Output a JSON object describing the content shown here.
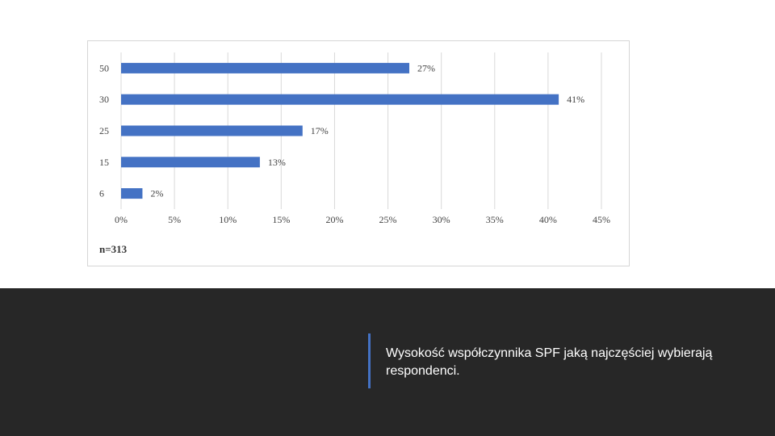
{
  "chart_data": {
    "type": "bar",
    "orientation": "horizontal",
    "categories": [
      "50",
      "30",
      "25",
      "15",
      "6"
    ],
    "values": [
      27,
      41,
      17,
      13,
      2
    ],
    "value_labels": [
      "27%",
      "41%",
      "17%",
      "13%",
      "2%"
    ],
    "x_ticks": [
      "0%",
      "5%",
      "10%",
      "15%",
      "20%",
      "25%",
      "30%",
      "35%",
      "40%",
      "45%"
    ],
    "xlim": [
      0,
      45
    ],
    "grid": "vertical",
    "bar_color": "#4472c4"
  },
  "sample_note": "n=313",
  "caption": "Wysokość współczynnika SPF  jaką najczęściej wybierają respondenci.",
  "colors": {
    "background_band": "#272727",
    "accent": "#4472c4",
    "caption_text": "#ffffff"
  }
}
